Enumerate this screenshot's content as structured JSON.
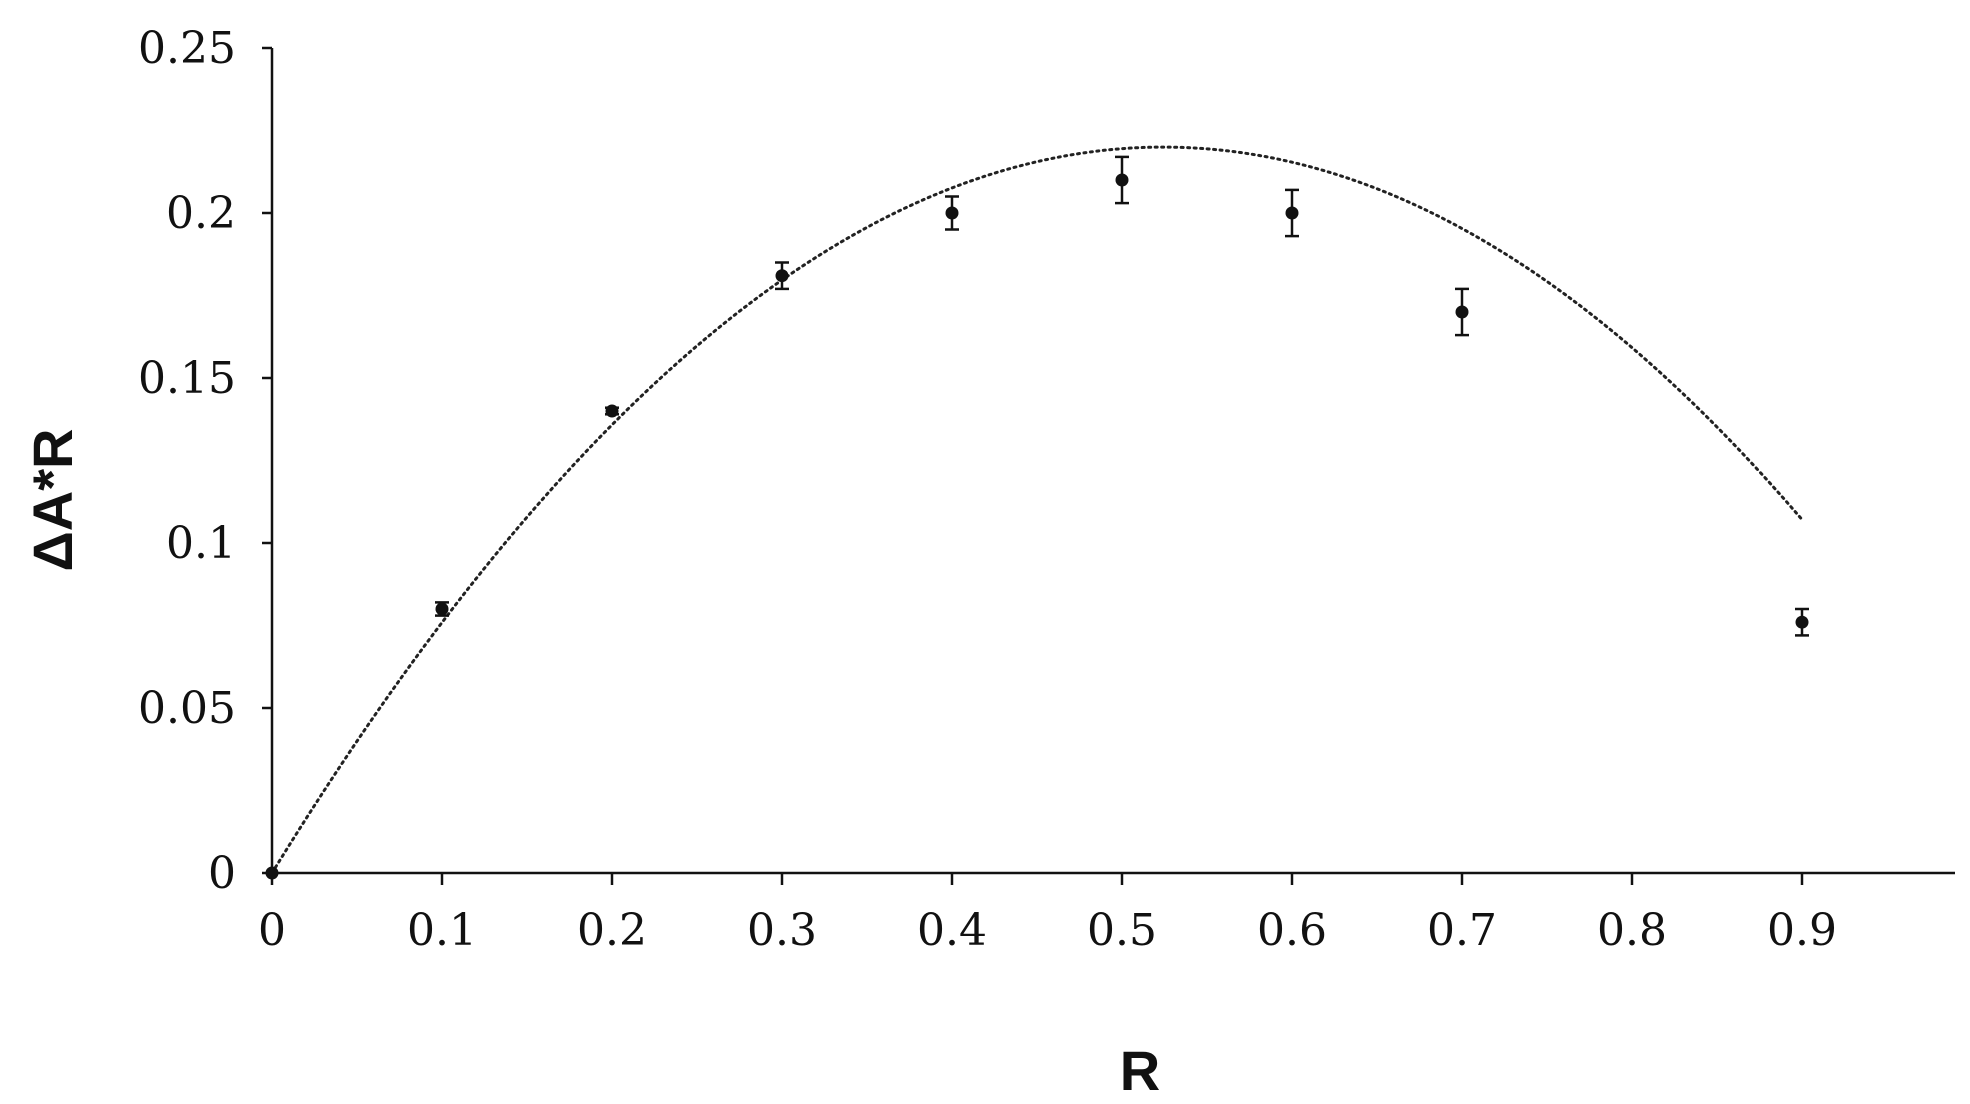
{
  "chart_data": {
    "type": "scatter",
    "title": "",
    "xlabel": "R",
    "ylabel": "ΔA*R",
    "xlim": [
      0,
      0.99
    ],
    "ylim": [
      0,
      0.25
    ],
    "x_ticks": [
      "0",
      "0.1",
      "0.2",
      "0.3",
      "0.4",
      "0.5",
      "0.6",
      "0.7",
      "0.8",
      "0.9"
    ],
    "y_ticks": [
      "0",
      "0.05",
      "0.1",
      "0.15",
      "0.2",
      "0.25"
    ],
    "grid": false,
    "legend": "none",
    "marker_color": "#111111",
    "series": [
      {
        "x": [
          0,
          0.1,
          0.2,
          0.3,
          0.4,
          0.5,
          0.6,
          0.7,
          0.9
        ],
        "y": [
          0,
          0.08,
          0.14,
          0.181,
          0.2,
          0.21,
          0.2,
          0.17,
          0.076
        ],
        "error": [
          0,
          0.002,
          0.001,
          0.004,
          0.005,
          0.007,
          0.007,
          0.007,
          0.004
        ]
      }
    ],
    "trendline": {
      "style": "dotted",
      "color": "#222222",
      "fit": "polynomial order 2",
      "coefficients": [
        0,
        0.839,
        -0.8
      ]
    }
  }
}
